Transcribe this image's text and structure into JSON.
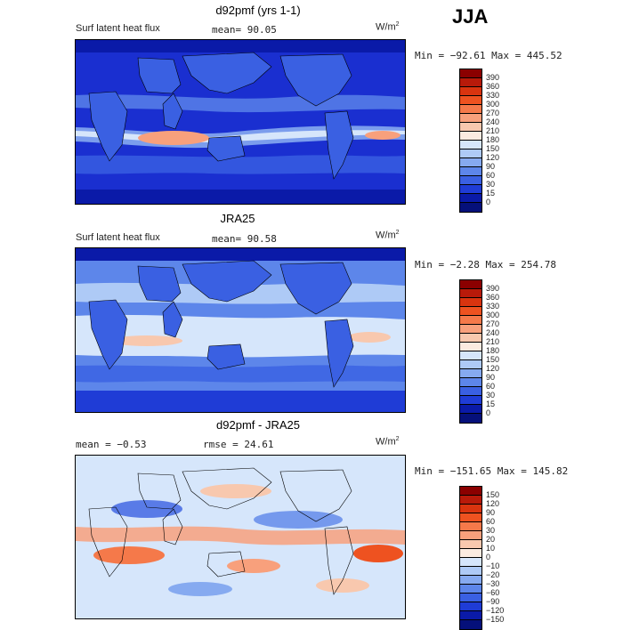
{
  "season": "JJA",
  "panels": [
    {
      "title": "d92pmf (yrs 1-1)",
      "label": "Surf latent heat flux",
      "stat": "mean=  90.05",
      "units_base": "W/m",
      "units_exp": "2",
      "minmax": "Min = −92.61 Max = 445.52",
      "levels": [
        "390",
        "360",
        "330",
        "300",
        "270",
        "240",
        "210",
        "180",
        "150",
        "120",
        "90",
        "60",
        "30",
        "15",
        "0"
      ],
      "colors": [
        "#8b0000",
        "#b81a0a",
        "#d9340f",
        "#ee5220",
        "#f5794a",
        "#f8a07c",
        "#f8c8ae",
        "#fbebe0",
        "#d6e6fb",
        "#aecaf6",
        "#86aaf0",
        "#5d86ea",
        "#3a60e2",
        "#1f3cd6",
        "#0a1aa8",
        "#05107a"
      ],
      "mean_value": 90.05,
      "min": -92.61,
      "max": 445.52
    },
    {
      "title": "JRA25",
      "label": "Surf latent heat flux",
      "stat": "mean=  90.58",
      "units_base": "W/m",
      "units_exp": "2",
      "minmax": "Min =  −2.28 Max = 254.78",
      "levels": [
        "390",
        "360",
        "330",
        "300",
        "270",
        "240",
        "210",
        "180",
        "150",
        "120",
        "90",
        "60",
        "30",
        "15",
        "0"
      ],
      "colors": [
        "#8b0000",
        "#b81a0a",
        "#d9340f",
        "#ee5220",
        "#f5794a",
        "#f8a07c",
        "#f8c8ae",
        "#fbebe0",
        "#d6e6fb",
        "#aecaf6",
        "#86aaf0",
        "#5d86ea",
        "#3a60e2",
        "#1f3cd6",
        "#0a1aa8",
        "#05107a"
      ],
      "mean_value": 90.58,
      "min": -2.28,
      "max": 254.78
    },
    {
      "title": "d92pmf - JRA25",
      "label": "mean =  −0.53",
      "stat": "rmse =  24.61",
      "units_base": "W/m",
      "units_exp": "2",
      "minmax": "Min = −151.65 Max = 145.82",
      "levels": [
        "150",
        "120",
        "90",
        "60",
        "30",
        "20",
        "10",
        "0",
        "−10",
        "−20",
        "−30",
        "−60",
        "−90",
        "−120",
        "−150"
      ],
      "colors": [
        "#8b0000",
        "#b81a0a",
        "#d9340f",
        "#ee5220",
        "#f5794a",
        "#f8a07c",
        "#f8c8ae",
        "#fbebe0",
        "#d6e6fb",
        "#aecaf6",
        "#86aaf0",
        "#5d86ea",
        "#3a60e2",
        "#1f3cd6",
        "#0a1aa8",
        "#05107a"
      ],
      "mean_value": -0.53,
      "rmse": 24.61,
      "min": -151.65,
      "max": 145.82
    }
  ]
}
